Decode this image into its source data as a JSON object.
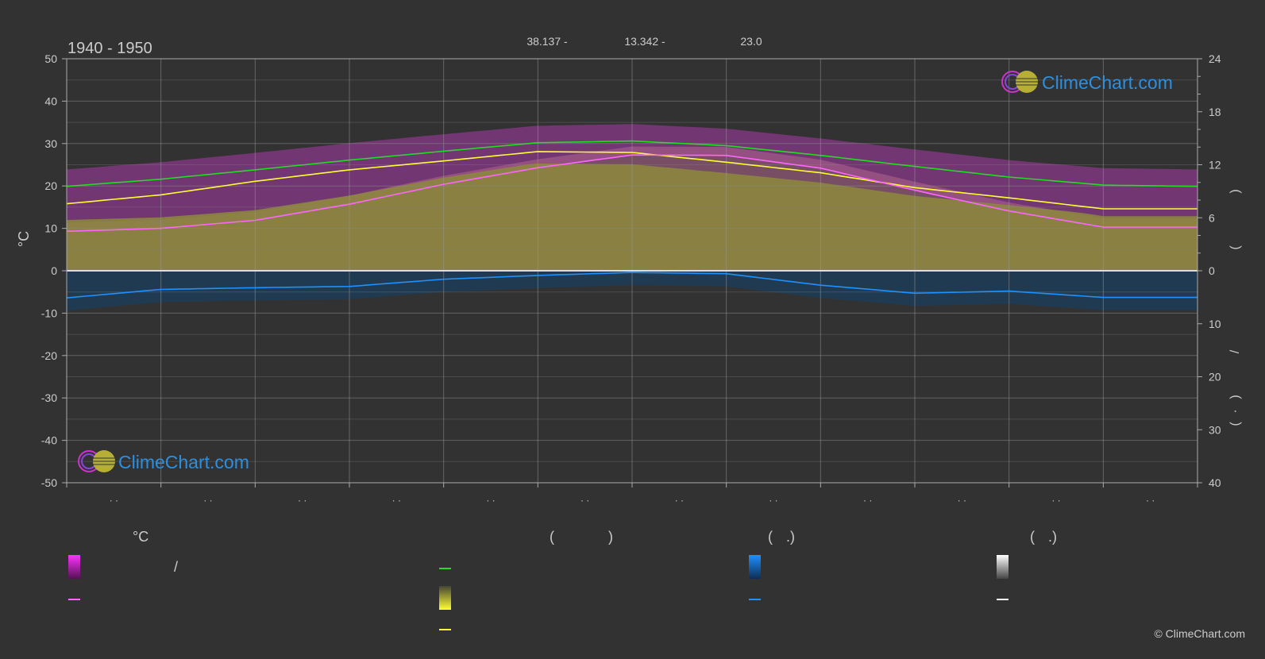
{
  "header": {
    "period": "1940 - 1950",
    "info": [
      "38.137 -",
      "13.342 -",
      "23.0"
    ]
  },
  "logo": {
    "text": "ClimeChart.com"
  },
  "copyright": "© ClimeChart.com",
  "chart_data": {
    "type": "line",
    "month_labels": [
      "· ·",
      "· ·",
      "· ·",
      "· ·",
      "· ·",
      "· ·",
      "· ·",
      "· ·",
      "· ·",
      "· ·",
      "· ·",
      "· ·"
    ],
    "y_left": {
      "label": "°C",
      "ticks": [
        50,
        40,
        30,
        20,
        10,
        0,
        -10,
        -20,
        -30,
        -40,
        -50
      ],
      "range": [
        -50,
        50
      ]
    },
    "y_right_top": {
      "ticks": [
        24,
        18,
        12,
        6,
        0
      ],
      "range": [
        0,
        24
      ],
      "label_glyphs": [
        "(",
        ")"
      ]
    },
    "y_right_bottom": {
      "ticks": [
        0,
        10,
        20,
        30,
        40
      ],
      "range": [
        0,
        40
      ],
      "label_glyphs": [
        "/",
        "(",
        "·",
        ")"
      ]
    },
    "grid": true,
    "series": [
      {
        "color": "#22dd22",
        "values": [
          19.9,
          21.6,
          23.8,
          26.1,
          28.2,
          30.2,
          30.6,
          29.5,
          27.2,
          24.6,
          22.1,
          20.2,
          19.9
        ]
      },
      {
        "color": "#ffff33",
        "values": [
          15.8,
          17.9,
          21.1,
          23.8,
          25.9,
          28.1,
          27.9,
          25.6,
          23.1,
          19.6,
          17.2,
          14.6,
          14.6
        ]
      },
      {
        "color": "#ff66ff",
        "values": [
          9.3,
          10.0,
          11.9,
          15.7,
          20.4,
          24.3,
          27.3,
          27.2,
          24.2,
          19.0,
          14.1,
          10.3,
          10.3
        ]
      },
      {
        "color": "#1e90ff",
        "values": [
          -6.4,
          -4.4,
          -4.0,
          -3.7,
          -2.0,
          -1.1,
          -0.4,
          -0.7,
          -3.4,
          -5.3,
          -4.8,
          -6.3,
          -6.3
        ]
      }
    ]
  },
  "legend": {
    "col1": {
      "header": "°C",
      "row1_mark": "/"
    },
    "col2": {
      "header_open": "(",
      "header_close": ")"
    },
    "col3": {
      "header_open": "(",
      "header_mid": ".)"
    },
    "col4": {
      "header_open": "(",
      "header_mid": ".)"
    },
    "colors": {
      "magenta": "#ff33ff",
      "pink_line": "#ff66ff",
      "green_line": "#22dd22",
      "yellow": "#e6e633",
      "yellow_line": "#ffff33",
      "blue": "#1e90ff",
      "white": "#ffffff"
    }
  }
}
